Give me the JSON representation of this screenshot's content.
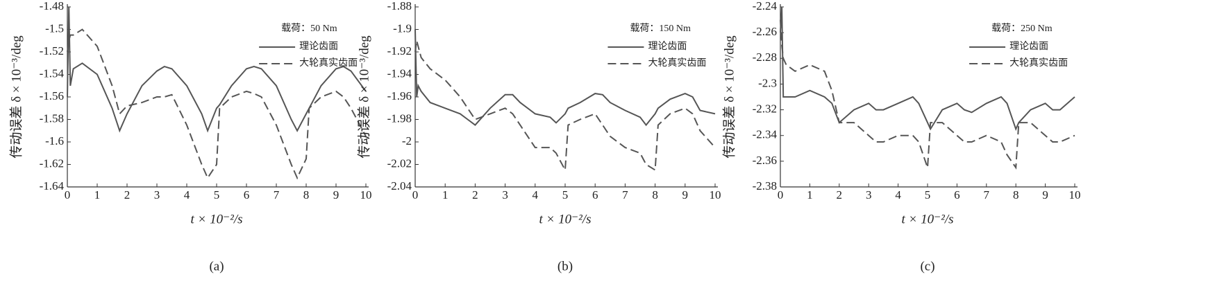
{
  "chart_data": [
    {
      "type": "line",
      "caption": "(a)",
      "x_label": "t × 10⁻²/s",
      "y_label": "传动误差 δ × 10⁻³/deg",
      "legend_title": "载荷：50 Nm",
      "x": [
        0,
        0.05,
        0.1,
        0.2,
        0.5,
        1,
        1.5,
        1.75,
        2,
        2.5,
        3,
        3.25,
        3.5,
        4,
        4.5,
        4.7,
        5,
        5.1,
        5.5,
        6,
        6.25,
        6.5,
        7,
        7.5,
        7.7,
        8,
        8.1,
        8.5,
        9,
        9.25,
        9.5,
        10
      ],
      "series": [
        {
          "name": "理论齿面",
          "color": "#555555",
          "line_style": "solid",
          "values": [
            -1.56,
            -1.48,
            -1.55,
            -1.535,
            -1.53,
            -1.54,
            -1.57,
            -1.59,
            -1.575,
            -1.55,
            -1.537,
            -1.533,
            -1.535,
            -1.55,
            -1.575,
            -1.59,
            -1.57,
            -1.567,
            -1.55,
            -1.535,
            -1.533,
            -1.535,
            -1.55,
            -1.58,
            -1.59,
            -1.575,
            -1.57,
            -1.55,
            -1.535,
            -1.533,
            -1.537,
            -1.555
          ]
        },
        {
          "name": "大轮真实齿面",
          "color": "#555555",
          "line_style": "dashed",
          "values": [
            -1.52,
            -1.51,
            -1.505,
            -1.505,
            -1.5,
            -1.515,
            -1.55,
            -1.575,
            -1.568,
            -1.565,
            -1.56,
            -1.56,
            -1.558,
            -1.585,
            -1.62,
            -1.632,
            -1.62,
            -1.57,
            -1.56,
            -1.555,
            -1.557,
            -1.56,
            -1.585,
            -1.62,
            -1.632,
            -1.615,
            -1.57,
            -1.56,
            -1.555,
            -1.56,
            -1.57,
            -1.595
          ]
        }
      ],
      "xlim": [
        0,
        10
      ],
      "xticks": [
        0,
        1,
        2,
        3,
        4,
        5,
        6,
        7,
        8,
        9,
        10
      ],
      "ylim": [
        -1.64,
        -1.48
      ],
      "yticks": [
        -1.48,
        -1.5,
        -1.52,
        -1.54,
        -1.56,
        -1.58,
        -1.6,
        -1.62,
        -1.64
      ]
    },
    {
      "type": "line",
      "caption": "(b)",
      "x_label": "t × 10⁻²/s",
      "y_label": "传动误差 δ × 10⁻³/deg",
      "legend_title": "载荷：150 Nm",
      "x": [
        0,
        0.05,
        0.1,
        0.2,
        0.5,
        1,
        1.5,
        1.75,
        2,
        2.5,
        3,
        3.25,
        3.5,
        4,
        4.5,
        4.7,
        5,
        5.1,
        5.5,
        6,
        6.25,
        6.5,
        7,
        7.5,
        7.7,
        8,
        8.1,
        8.5,
        9,
        9.25,
        9.5,
        10
      ],
      "series": [
        {
          "name": "理论齿面",
          "color": "#555555",
          "line_style": "solid",
          "values": [
            -1.9,
            -1.96,
            -1.95,
            -1.955,
            -1.965,
            -1.97,
            -1.975,
            -1.98,
            -1.985,
            -1.97,
            -1.958,
            -1.958,
            -1.965,
            -1.975,
            -1.978,
            -1.983,
            -1.975,
            -1.97,
            -1.965,
            -1.957,
            -1.958,
            -1.965,
            -1.972,
            -1.978,
            -1.985,
            -1.975,
            -1.97,
            -1.962,
            -1.957,
            -1.96,
            -1.972,
            -1.975
          ]
        },
        {
          "name": "大轮真实齿面",
          "color": "#555555",
          "line_style": "dashed",
          "values": [
            -1.92,
            -1.91,
            -1.915,
            -1.925,
            -1.935,
            -1.945,
            -1.96,
            -1.97,
            -1.98,
            -1.975,
            -1.97,
            -1.975,
            -1.985,
            -2.005,
            -2.005,
            -2.01,
            -2.025,
            -1.985,
            -1.98,
            -1.975,
            -1.985,
            -1.995,
            -2.005,
            -2.01,
            -2.02,
            -2.025,
            -1.985,
            -1.975,
            -1.97,
            -1.975,
            -1.99,
            -2.005
          ]
        }
      ],
      "xlim": [
        0,
        10
      ],
      "xticks": [
        0,
        1,
        2,
        3,
        4,
        5,
        6,
        7,
        8,
        9,
        10
      ],
      "ylim": [
        -2.04,
        -1.88
      ],
      "yticks": [
        -1.88,
        -1.9,
        -1.92,
        -1.94,
        -1.96,
        -1.98,
        -2,
        -2.02,
        -2.04
      ]
    },
    {
      "type": "line",
      "caption": "(c)",
      "x_label": "t × 10⁻²/s",
      "y_label": "传动误差 δ × 10⁻³/deg",
      "legend_title": "载荷：250 Nm",
      "x": [
        0,
        0.05,
        0.1,
        0.2,
        0.5,
        1,
        1.5,
        1.75,
        2,
        2.5,
        3,
        3.25,
        3.5,
        4,
        4.5,
        4.7,
        5,
        5.1,
        5.5,
        6,
        6.25,
        6.5,
        7,
        7.5,
        7.7,
        8,
        8.1,
        8.5,
        9,
        9.25,
        9.5,
        10
      ],
      "series": [
        {
          "name": "理论齿面",
          "color": "#555555",
          "line_style": "solid",
          "values": [
            -2.26,
            -2.24,
            -2.31,
            -2.31,
            -2.31,
            -2.305,
            -2.31,
            -2.315,
            -2.33,
            -2.32,
            -2.315,
            -2.32,
            -2.32,
            -2.315,
            -2.31,
            -2.315,
            -2.33,
            -2.335,
            -2.32,
            -2.315,
            -2.32,
            -2.322,
            -2.315,
            -2.31,
            -2.315,
            -2.335,
            -2.33,
            -2.32,
            -2.315,
            -2.32,
            -2.32,
            -2.31
          ]
        },
        {
          "name": "大轮真实齿面",
          "color": "#555555",
          "line_style": "dashed",
          "values": [
            -2.25,
            -2.27,
            -2.28,
            -2.285,
            -2.29,
            -2.285,
            -2.29,
            -2.305,
            -2.33,
            -2.33,
            -2.34,
            -2.345,
            -2.345,
            -2.34,
            -2.34,
            -2.345,
            -2.365,
            -2.33,
            -2.33,
            -2.34,
            -2.345,
            -2.345,
            -2.34,
            -2.345,
            -2.355,
            -2.365,
            -2.33,
            -2.33,
            -2.34,
            -2.345,
            -2.345,
            -2.34
          ]
        }
      ],
      "xlim": [
        0,
        10
      ],
      "xticks": [
        0,
        1,
        2,
        3,
        4,
        5,
        6,
        7,
        8,
        9,
        10
      ],
      "ylim": [
        -2.38,
        -2.24
      ],
      "yticks": [
        -2.24,
        -2.26,
        -2.28,
        -2.3,
        -2.32,
        -2.34,
        -2.36,
        -2.38
      ]
    }
  ]
}
